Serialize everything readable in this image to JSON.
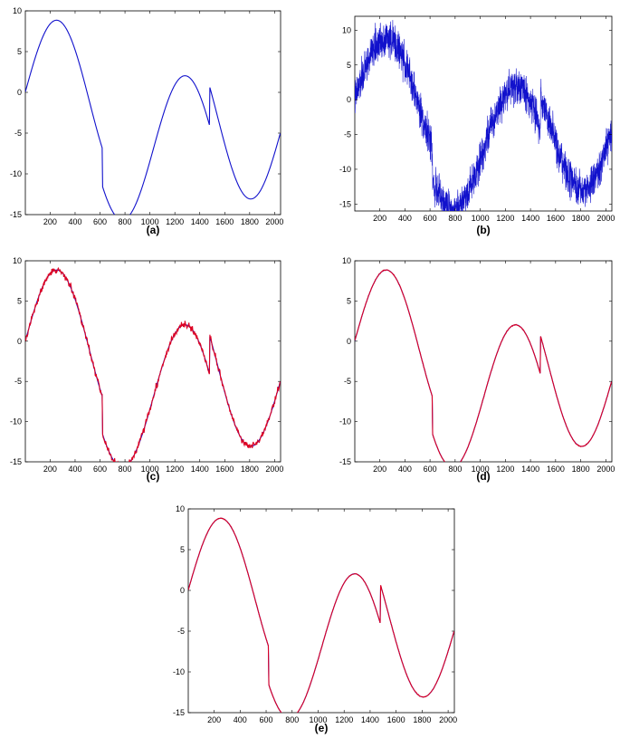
{
  "colors": {
    "clean": "#1111cc",
    "estimate": "#dd0022",
    "frame": "#000000"
  },
  "chart_data": [
    {
      "type": "line",
      "caption": "(a)",
      "xlim": [
        1,
        2048
      ],
      "ylim": [
        -15,
        10
      ],
      "xticks": [
        200,
        400,
        600,
        800,
        1000,
        1200,
        1400,
        1600,
        1800,
        2000
      ],
      "yticks": [
        10,
        5,
        0,
        -5,
        -10,
        -15
      ],
      "grid": false,
      "series": [
        {
          "key": "clean",
          "color": "#1111cc",
          "noise": 0,
          "breakpoints": [
            [
              620,
              -5.6,
              -10.2
            ],
            [
              1480,
              -1.2,
              3.6
            ]
          ]
        }
      ]
    },
    {
      "type": "line",
      "caption": "(b)",
      "xlim": [
        1,
        2048
      ],
      "ylim": [
        -16,
        12
      ],
      "xticks": [
        200,
        400,
        600,
        800,
        1000,
        1200,
        1400,
        1600,
        1800,
        2000
      ],
      "yticks": [
        10,
        5,
        0,
        -5,
        -10,
        -15
      ],
      "grid": false,
      "series": [
        {
          "key": "noisy",
          "color": "#1111cc",
          "noise": 1.0
        }
      ]
    },
    {
      "type": "line",
      "caption": "(c)",
      "xlim": [
        1,
        2048
      ],
      "ylim": [
        -15,
        10
      ],
      "xticks": [
        200,
        400,
        600,
        800,
        1000,
        1200,
        1400,
        1600,
        1800,
        2000
      ],
      "yticks": [
        10,
        5,
        0,
        -5,
        -10,
        -15
      ],
      "grid": false,
      "series": [
        {
          "key": "clean",
          "color": "#1111cc",
          "noise": 0
        },
        {
          "key": "estimate",
          "color": "#dd0022",
          "noise": 0.35
        }
      ]
    },
    {
      "type": "line",
      "caption": "(d)",
      "xlim": [
        1,
        2048
      ],
      "ylim": [
        -15,
        10
      ],
      "xticks": [
        200,
        400,
        600,
        800,
        1000,
        1200,
        1400,
        1600,
        1800,
        2000
      ],
      "yticks": [
        10,
        5,
        0,
        -5,
        -10,
        -15
      ],
      "grid": false,
      "series": [
        {
          "key": "clean",
          "color": "#1111cc",
          "noise": 0
        },
        {
          "key": "estimate",
          "color": "#dd0022",
          "noise": 0.05
        }
      ]
    },
    {
      "type": "line",
      "caption": "(e)",
      "xlim": [
        1,
        2048
      ],
      "ylim": [
        -15,
        10
      ],
      "xticks": [
        200,
        400,
        600,
        800,
        1000,
        1200,
        1400,
        1600,
        1800,
        2000
      ],
      "yticks": [
        10,
        5,
        0,
        -5,
        -10,
        -15
      ],
      "grid": false,
      "series": [
        {
          "key": "clean",
          "color": "#1111cc",
          "noise": 0
        },
        {
          "key": "estimate",
          "color": "#dd0022",
          "noise": 0.04
        }
      ]
    }
  ]
}
